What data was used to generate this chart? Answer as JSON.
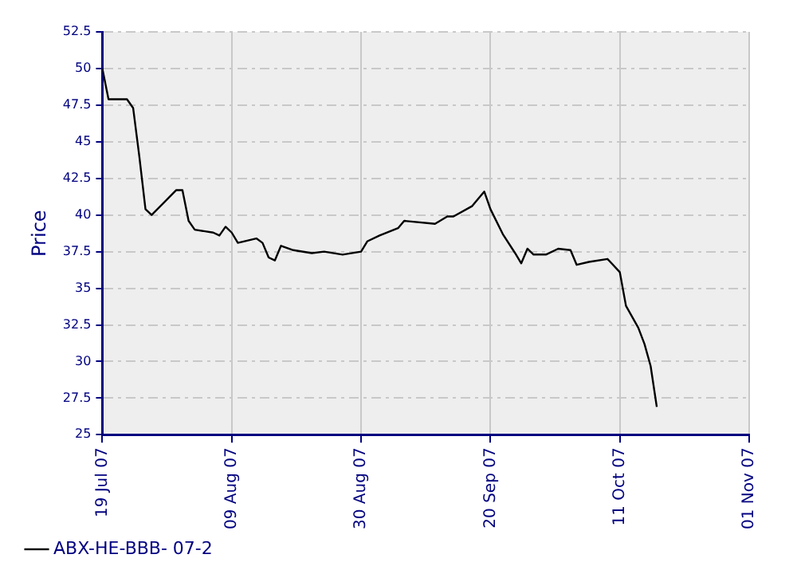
{
  "chart_data": {
    "type": "line",
    "ylabel": "Price",
    "x": [
      "2007-07-19",
      "2007-07-20",
      "2007-07-21",
      "2007-07-23",
      "2007-07-24",
      "2007-07-25",
      "2007-07-26",
      "2007-07-27",
      "2007-07-31",
      "2007-08-01",
      "2007-08-02",
      "2007-08-03",
      "2007-08-06",
      "2007-08-07",
      "2007-08-08",
      "2007-08-09",
      "2007-08-10",
      "2007-08-13",
      "2007-08-14",
      "2007-08-15",
      "2007-08-16",
      "2007-08-17",
      "2007-08-19",
      "2007-08-22",
      "2007-08-24",
      "2007-08-27",
      "2007-08-30",
      "2007-08-31",
      "2007-09-02",
      "2007-09-05",
      "2007-09-06",
      "2007-09-11",
      "2007-09-13",
      "2007-09-14",
      "2007-09-17",
      "2007-09-19",
      "2007-09-20",
      "2007-09-22",
      "2007-09-24",
      "2007-09-25",
      "2007-09-26",
      "2007-09-27",
      "2007-09-29",
      "2007-10-01",
      "2007-10-03",
      "2007-10-04",
      "2007-10-06",
      "2007-10-09",
      "2007-10-11",
      "2007-10-12",
      "2007-10-14",
      "2007-10-15",
      "2007-10-16",
      "2007-10-17"
    ],
    "series": [
      {
        "name": "ABX-HE-BBB- 07-2",
        "color": "#000000",
        "values": [
          50.0,
          47.9,
          47.9,
          47.9,
          47.3,
          44.0,
          40.4,
          40.0,
          41.7,
          41.7,
          39.6,
          39.0,
          38.8,
          38.6,
          39.2,
          38.8,
          38.1,
          38.4,
          38.1,
          37.1,
          36.9,
          37.9,
          37.6,
          37.4,
          37.5,
          37.3,
          37.5,
          38.2,
          38.6,
          39.1,
          39.6,
          39.4,
          39.9,
          39.9,
          40.6,
          41.6,
          40.4,
          38.7,
          37.4,
          36.7,
          37.7,
          37.3,
          37.3,
          37.7,
          37.6,
          36.6,
          36.8,
          37.0,
          36.1,
          33.8,
          32.3,
          31.2,
          29.7,
          26.9
        ]
      }
    ],
    "xlim": [
      "2007-07-19",
      "2007-11-01"
    ],
    "xticks": [
      {
        "value": "2007-07-19",
        "label": "19 Jul 07"
      },
      {
        "value": "2007-08-09",
        "label": "09 Aug 07"
      },
      {
        "value": "2007-08-30",
        "label": "30 Aug 07"
      },
      {
        "value": "2007-09-20",
        "label": "20 Sep 07"
      },
      {
        "value": "2007-10-11",
        "label": "11 Oct 07"
      },
      {
        "value": "2007-11-01",
        "label": "01 Nov 07"
      }
    ],
    "ylim": [
      25,
      52.5
    ],
    "yticks": [
      25,
      27.5,
      30,
      32.5,
      35,
      37.5,
      40,
      42.5,
      45,
      47.5,
      50,
      52.5
    ],
    "grid": true,
    "legend": "bottom left",
    "marker": "none",
    "line_style": "solid"
  }
}
